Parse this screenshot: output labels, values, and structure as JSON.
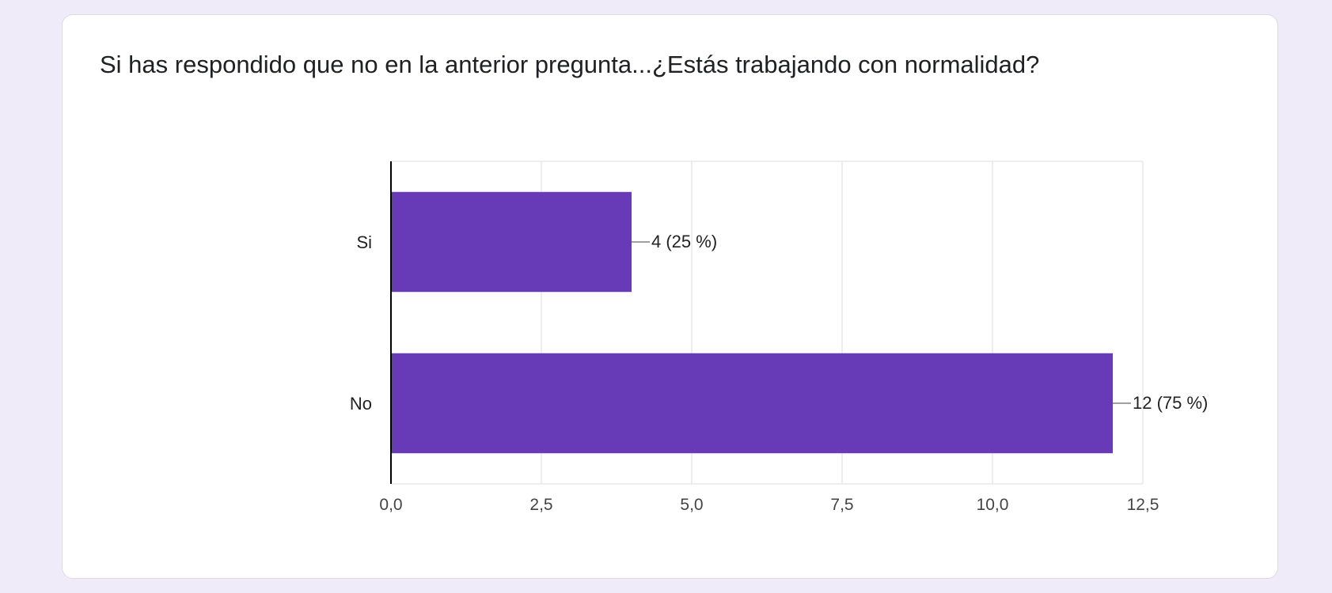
{
  "question": {
    "title": "Si has respondido que no en la anterior pregunta...¿Estás trabajando con normalidad?"
  },
  "colors": {
    "bar": "#673ab7",
    "grid": "#e8e8e8",
    "axis": "#000000",
    "label": "#222222",
    "tick": "#444444"
  },
  "chart_data": {
    "type": "bar",
    "orientation": "horizontal",
    "categories": [
      "Si",
      "No"
    ],
    "values": [
      4,
      12
    ],
    "data_labels": [
      "4 (25 %)",
      "12 (75 %)"
    ],
    "xlim": [
      0,
      12.5
    ],
    "xticks": [
      0,
      2.5,
      5,
      7.5,
      10,
      12.5
    ],
    "xtick_labels": [
      "0,0",
      "2,5",
      "5,0",
      "7,5",
      "10,0",
      "12,5"
    ],
    "grid": true,
    "legend": "none"
  }
}
